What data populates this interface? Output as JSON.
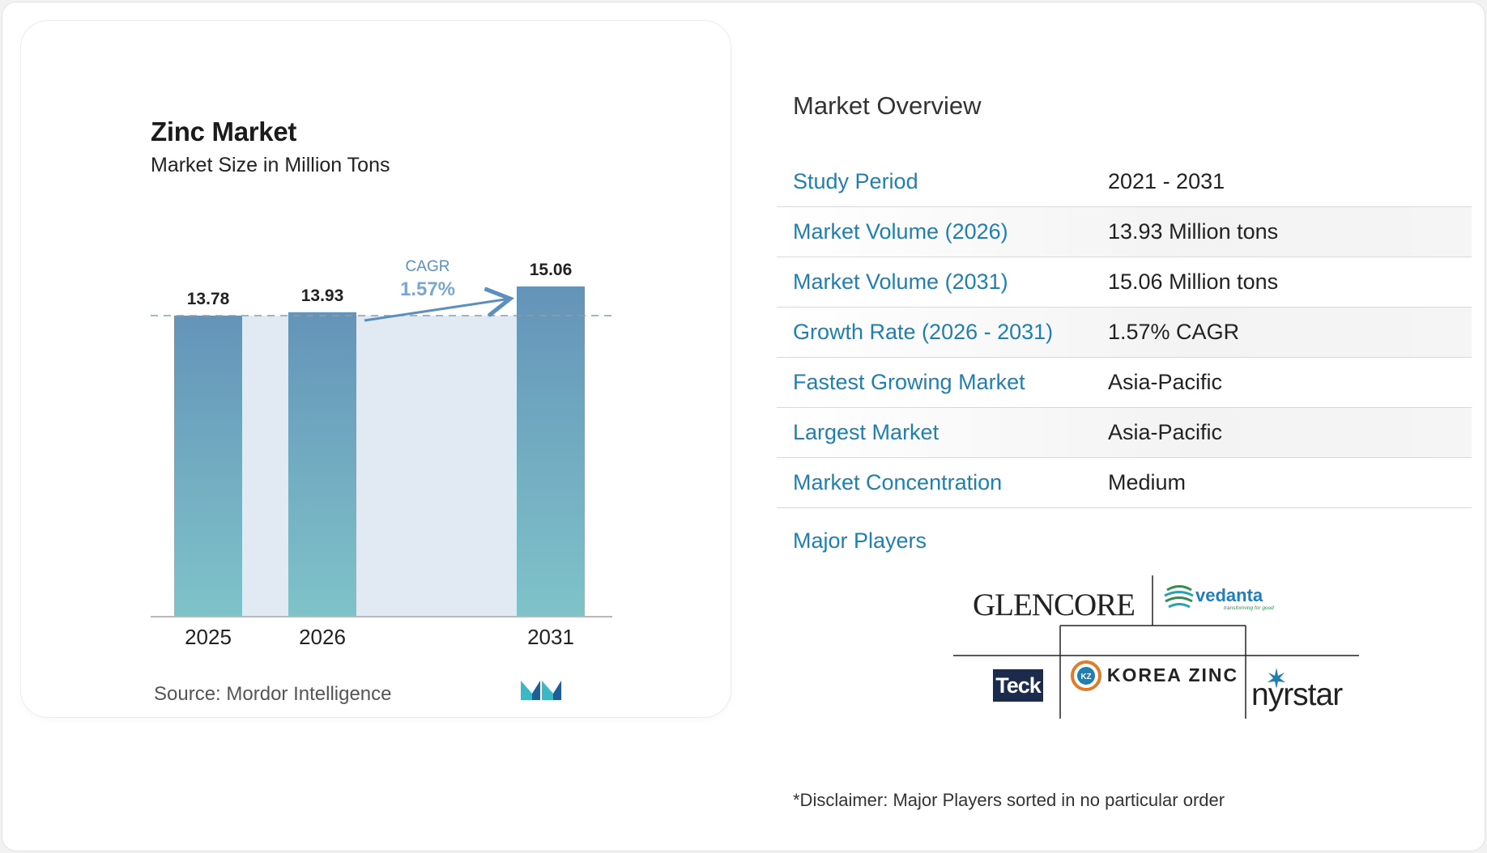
{
  "chart_card": {
    "title": "Zinc Market",
    "subtitle": "Market Size in Million Tons",
    "source_label": "Source:",
    "source_name": "Mordor Intelligence",
    "cagr_label": "CAGR",
    "cagr_value": "1.57%"
  },
  "chart_data": {
    "type": "bar",
    "title": "Zinc Market",
    "subtitle": "Market Size in Million Tons",
    "categories": [
      "2025",
      "2026",
      "2031"
    ],
    "values": [
      13.78,
      13.93,
      15.06
    ],
    "value_labels": [
      "13.78",
      "13.93",
      "15.06"
    ],
    "xlabel": "",
    "ylabel": "",
    "annotation": "CAGR 1.57%",
    "colors": {
      "bar_top": "#6494b9",
      "bar_bottom": "#7fc3c9",
      "band": "#e1eaf2",
      "arrow": "#5b8fbd"
    }
  },
  "overview": {
    "title": "Market Overview",
    "rows": [
      {
        "label": "Study Period",
        "value": "2021 - 2031"
      },
      {
        "label": "Market Volume (2026)",
        "value": "13.93 Million tons"
      },
      {
        "label": "Market Volume (2031)",
        "value": "15.06 Million tons"
      },
      {
        "label": "Growth Rate (2026 - 2031)",
        "value": "1.57% CAGR"
      },
      {
        "label": "Fastest Growing Market",
        "value": "Asia-Pacific"
      },
      {
        "label": "Largest Market",
        "value": "Asia-Pacific"
      },
      {
        "label": "Market Concentration",
        "value": "Medium"
      }
    ],
    "players_title": "Major Players",
    "players": [
      "GLENCORE",
      "vedanta",
      "Teck",
      "KOREA ZINC",
      "nyrstar"
    ],
    "vedanta_tagline": "transforming for good",
    "disclaimer": "*Disclaimer: Major Players sorted in no particular order"
  },
  "theme": {
    "accent": "#1f7fb0"
  }
}
